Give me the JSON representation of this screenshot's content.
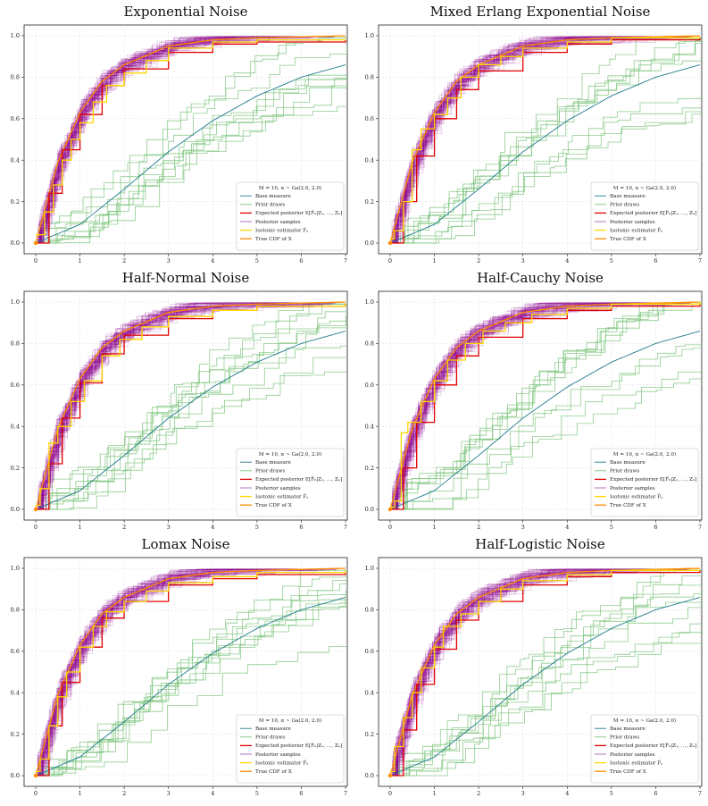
{
  "chart_data": [
    {
      "type": "line",
      "title": "Exponential Noise",
      "xlim": [
        0,
        7
      ],
      "ylim": [
        0,
        1
      ],
      "xticks": [
        0,
        1,
        2,
        3,
        4,
        5,
        6,
        7
      ],
      "yticks": [
        0.0,
        0.2,
        0.4,
        0.6,
        0.8,
        1.0
      ],
      "grid": true,
      "legend_position": "lower-right",
      "legend_header": "M = 10, α ~ Ga(2.0, 2.0)",
      "legend": [
        "Base measure",
        "Prior draws",
        "Expected posterior E[F̂₀|Z₁, …, Zₙ]",
        "Posterior samples",
        "Isotonic estimator F̂ₙ",
        "True CDF of X"
      ],
      "series": [
        {
          "role": "base",
          "x": [
            0,
            1,
            2,
            3,
            4,
            5,
            6,
            7
          ],
          "y": [
            0,
            0.09,
            0.26,
            0.44,
            0.59,
            0.71,
            0.8,
            0.86
          ]
        },
        {
          "role": "true_cdf",
          "x": [
            0,
            0.5,
            1,
            1.5,
            2,
            3,
            4,
            5,
            7
          ],
          "y": [
            0,
            0.39,
            0.63,
            0.78,
            0.86,
            0.95,
            0.98,
            0.99,
            1.0
          ]
        },
        {
          "role": "isotonic",
          "x": [
            0,
            0.2,
            0.4,
            0.6,
            0.8,
            1.0,
            1.3,
            1.6,
            2.0,
            2.5,
            3.0,
            4.0,
            5.0,
            7.0
          ],
          "y": [
            0.04,
            0.15,
            0.28,
            0.4,
            0.5,
            0.58,
            0.68,
            0.76,
            0.82,
            0.88,
            0.94,
            0.97,
            0.98,
            0.98
          ]
        },
        {
          "role": "expected_posterior",
          "x": [
            0,
            0.3,
            0.6,
            1.0,
            1.5,
            2.0,
            3.0,
            4.0,
            5.0,
            7.0
          ],
          "y": [
            0,
            0.24,
            0.45,
            0.62,
            0.76,
            0.84,
            0.92,
            0.96,
            0.97,
            0.98
          ]
        }
      ]
    },
    {
      "type": "line",
      "title": "Mixed Erlang Exponential Noise",
      "xlim": [
        0,
        7
      ],
      "ylim": [
        0,
        1
      ],
      "xticks": [
        0,
        1,
        2,
        3,
        4,
        5,
        6,
        7
      ],
      "yticks": [
        0.0,
        0.2,
        0.4,
        0.6,
        0.8,
        1.0
      ],
      "grid": true,
      "legend_position": "lower-right",
      "legend_header": "M = 10, α ~ Ga(2.0, 2.0)",
      "legend": [
        "Base measure",
        "Prior draws",
        "Expected posterior E[F̂₀|Z₁, …, Zₙ]",
        "Posterior samples",
        "Isotonic estimator F̂ₙ",
        "True CDF of X"
      ],
      "series": [
        {
          "role": "base",
          "x": [
            0,
            1,
            2,
            3,
            4,
            5,
            6,
            7
          ],
          "y": [
            0,
            0.09,
            0.26,
            0.44,
            0.59,
            0.71,
            0.8,
            0.86
          ]
        },
        {
          "role": "true_cdf",
          "x": [
            0,
            0.5,
            1,
            1.5,
            2,
            3,
            4,
            5,
            7
          ],
          "y": [
            0,
            0.39,
            0.63,
            0.78,
            0.86,
            0.95,
            0.98,
            0.99,
            1.0
          ]
        },
        {
          "role": "isotonic",
          "x": [
            0,
            0.1,
            0.3,
            0.5,
            0.7,
            1.0,
            1.3,
            1.6,
            2.0,
            2.5,
            3.0,
            4.0,
            5.0,
            7.0
          ],
          "y": [
            0.02,
            0.06,
            0.2,
            0.45,
            0.55,
            0.62,
            0.7,
            0.8,
            0.86,
            0.9,
            0.94,
            0.97,
            0.99,
            0.99
          ]
        },
        {
          "role": "expected_posterior",
          "x": [
            0,
            0.3,
            0.6,
            1.0,
            1.5,
            2.0,
            3.0,
            4.0,
            5.0,
            7.0
          ],
          "y": [
            0,
            0.2,
            0.42,
            0.6,
            0.74,
            0.83,
            0.92,
            0.96,
            0.98,
            0.99
          ]
        }
      ]
    },
    {
      "type": "line",
      "title": "Half-Normal Noise",
      "xlim": [
        0,
        7
      ],
      "ylim": [
        0,
        1
      ],
      "xticks": [
        0,
        1,
        2,
        3,
        4,
        5,
        6,
        7
      ],
      "yticks": [
        0.0,
        0.2,
        0.4,
        0.6,
        0.8,
        1.0
      ],
      "grid": true,
      "legend_position": "lower-right",
      "legend_header": "M = 10, α ~ Ga(2.0, 2.0)",
      "legend": [
        "Base measure",
        "Prior draws",
        "Expected posterior E[F̂₀|Z₁, …, Zₙ]",
        "Posterior samples",
        "Isotonic estimator F̂ₙ",
        "True CDF of X"
      ],
      "series": [
        {
          "role": "base",
          "x": [
            0,
            1,
            2,
            3,
            4,
            5,
            6,
            7
          ],
          "y": [
            0,
            0.09,
            0.26,
            0.44,
            0.59,
            0.71,
            0.8,
            0.86
          ]
        },
        {
          "role": "true_cdf",
          "x": [
            0,
            0.5,
            1,
            1.5,
            2,
            3,
            4,
            5,
            7
          ],
          "y": [
            0,
            0.39,
            0.63,
            0.78,
            0.86,
            0.95,
            0.98,
            0.99,
            1.0
          ]
        },
        {
          "role": "isotonic",
          "x": [
            0,
            0.1,
            0.3,
            0.5,
            0.8,
            1.1,
            1.5,
            1.9,
            2.4,
            3.0,
            4.0,
            5.0,
            7.0
          ],
          "y": [
            0.02,
            0.1,
            0.32,
            0.4,
            0.52,
            0.62,
            0.74,
            0.82,
            0.88,
            0.93,
            0.96,
            0.98,
            0.99
          ]
        },
        {
          "role": "expected_posterior",
          "x": [
            0,
            0.3,
            0.6,
            1.0,
            1.5,
            2.0,
            3.0,
            4.0,
            5.0,
            7.0
          ],
          "y": [
            0,
            0.22,
            0.44,
            0.61,
            0.75,
            0.84,
            0.92,
            0.96,
            0.98,
            0.99
          ]
        }
      ]
    },
    {
      "type": "line",
      "title": "Half-Cauchy Noise",
      "xlim": [
        0,
        7
      ],
      "ylim": [
        0,
        1
      ],
      "xticks": [
        0,
        1,
        2,
        3,
        4,
        5,
        6,
        7
      ],
      "yticks": [
        0.0,
        0.2,
        0.4,
        0.6,
        0.8,
        1.0
      ],
      "grid": true,
      "legend_position": "lower-right",
      "legend_header": "M = 10, α ~ Ga(2.0, 2.0)",
      "legend": [
        "Base measure",
        "Prior draws",
        "Expected posterior E[F̂₀|Z₁, …, Zₙ]",
        "Posterior samples",
        "Isotonic estimator F̂ₙ",
        "True CDF of X"
      ],
      "series": [
        {
          "role": "base",
          "x": [
            0,
            1,
            2,
            3,
            4,
            5,
            6,
            7
          ],
          "y": [
            0,
            0.09,
            0.26,
            0.44,
            0.59,
            0.71,
            0.8,
            0.86
          ]
        },
        {
          "role": "true_cdf",
          "x": [
            0,
            0.5,
            1,
            1.5,
            2,
            3,
            4,
            5,
            7
          ],
          "y": [
            0,
            0.39,
            0.63,
            0.78,
            0.86,
            0.95,
            0.98,
            0.99,
            1.0
          ]
        },
        {
          "role": "isotonic",
          "x": [
            0,
            0.1,
            0.25,
            0.4,
            0.7,
            1.0,
            1.3,
            1.7,
            2.1,
            2.6,
            3.2,
            4.0,
            5.0,
            7.0
          ],
          "y": [
            0.01,
            0.04,
            0.37,
            0.42,
            0.52,
            0.62,
            0.72,
            0.8,
            0.86,
            0.9,
            0.94,
            0.97,
            0.99,
            1.0
          ]
        },
        {
          "role": "expected_posterior",
          "x": [
            0,
            0.3,
            0.6,
            1.0,
            1.5,
            2.0,
            3.0,
            4.0,
            5.0,
            7.0
          ],
          "y": [
            0,
            0.2,
            0.42,
            0.6,
            0.74,
            0.83,
            0.92,
            0.96,
            0.98,
            0.99
          ]
        }
      ]
    },
    {
      "type": "line",
      "title": "Lomax Noise",
      "xlim": [
        0,
        7
      ],
      "ylim": [
        0,
        1
      ],
      "xticks": [
        0,
        1,
        2,
        3,
        4,
        5,
        6,
        7
      ],
      "yticks": [
        0.0,
        0.2,
        0.4,
        0.6,
        0.8,
        1.0
      ],
      "grid": true,
      "legend_position": "lower-right",
      "legend_header": "M = 10, α ~ Ga(2.0, 2.0)",
      "legend": [
        "Base measure",
        "Prior draws",
        "Expected posterior E[F̂₀|Z₁, …, Zₙ]",
        "Posterior samples",
        "Isotonic estimator F̂ₙ",
        "True CDF of X"
      ],
      "series": [
        {
          "role": "base",
          "x": [
            0,
            1,
            2,
            3,
            4,
            5,
            6,
            7
          ],
          "y": [
            0,
            0.09,
            0.26,
            0.44,
            0.59,
            0.71,
            0.8,
            0.86
          ]
        },
        {
          "role": "true_cdf",
          "x": [
            0,
            0.5,
            1,
            1.5,
            2,
            3,
            4,
            5,
            7
          ],
          "y": [
            0,
            0.39,
            0.63,
            0.78,
            0.86,
            0.95,
            0.98,
            0.99,
            1.0
          ]
        },
        {
          "role": "isotonic",
          "x": [
            0,
            0.1,
            0.3,
            0.5,
            0.7,
            1.0,
            1.3,
            1.6,
            2.0,
            2.5,
            3.0,
            4.0,
            5.0,
            7.0
          ],
          "y": [
            0.02,
            0.08,
            0.24,
            0.38,
            0.5,
            0.62,
            0.72,
            0.79,
            0.84,
            0.89,
            0.93,
            0.96,
            0.98,
            0.99
          ]
        },
        {
          "role": "expected_posterior",
          "x": [
            0,
            0.3,
            0.6,
            1.0,
            1.5,
            2.0,
            3.0,
            4.0,
            5.0,
            7.0
          ],
          "y": [
            0,
            0.24,
            0.45,
            0.62,
            0.76,
            0.84,
            0.92,
            0.95,
            0.97,
            0.98
          ]
        }
      ]
    },
    {
      "type": "line",
      "title": "Half-Logistic Noise",
      "xlim": [
        0,
        7
      ],
      "ylim": [
        0,
        1
      ],
      "xticks": [
        0,
        1,
        2,
        3,
        4,
        5,
        6,
        7
      ],
      "yticks": [
        0.0,
        0.2,
        0.4,
        0.6,
        0.8,
        1.0
      ],
      "grid": true,
      "legend_position": "lower-right",
      "legend_header": "M = 10, α ~ Ga(2.0, 2.0)",
      "legend": [
        "Base measure",
        "Prior draws",
        "Expected posterior E[F̂₀|Z₁, …, Zₙ]",
        "Posterior samples",
        "Isotonic estimator F̂ₙ",
        "True CDF of X"
      ],
      "series": [
        {
          "role": "base",
          "x": [
            0,
            1,
            2,
            3,
            4,
            5,
            6,
            7
          ],
          "y": [
            0,
            0.09,
            0.26,
            0.44,
            0.59,
            0.71,
            0.8,
            0.86
          ]
        },
        {
          "role": "true_cdf",
          "x": [
            0,
            0.5,
            1,
            1.5,
            2,
            3,
            4,
            5,
            7
          ],
          "y": [
            0,
            0.39,
            0.63,
            0.78,
            0.86,
            0.95,
            0.98,
            0.99,
            1.0
          ]
        },
        {
          "role": "isotonic",
          "x": [
            0,
            0.1,
            0.3,
            0.5,
            0.7,
            1.0,
            1.2,
            1.6,
            2.0,
            2.5,
            3.0,
            4.0,
            5.0,
            7.0
          ],
          "y": [
            0.02,
            0.14,
            0.28,
            0.4,
            0.52,
            0.62,
            0.72,
            0.78,
            0.84,
            0.9,
            0.94,
            0.97,
            0.99,
            0.99
          ]
        },
        {
          "role": "expected_posterior",
          "x": [
            0,
            0.3,
            0.6,
            1.0,
            1.5,
            2.0,
            3.0,
            4.0,
            5.0,
            7.0
          ],
          "y": [
            0,
            0.22,
            0.44,
            0.61,
            0.75,
            0.84,
            0.92,
            0.96,
            0.98,
            0.99
          ]
        }
      ]
    }
  ],
  "colors": {
    "base": "#1f7a8c",
    "prior": "#7cc47c",
    "expected_posterior": "#e00000",
    "posterior_samples": "#8b008b",
    "isotonic": "#ffd700",
    "true_cdf": "#ff8c00",
    "grid": "#d8d8d8"
  }
}
